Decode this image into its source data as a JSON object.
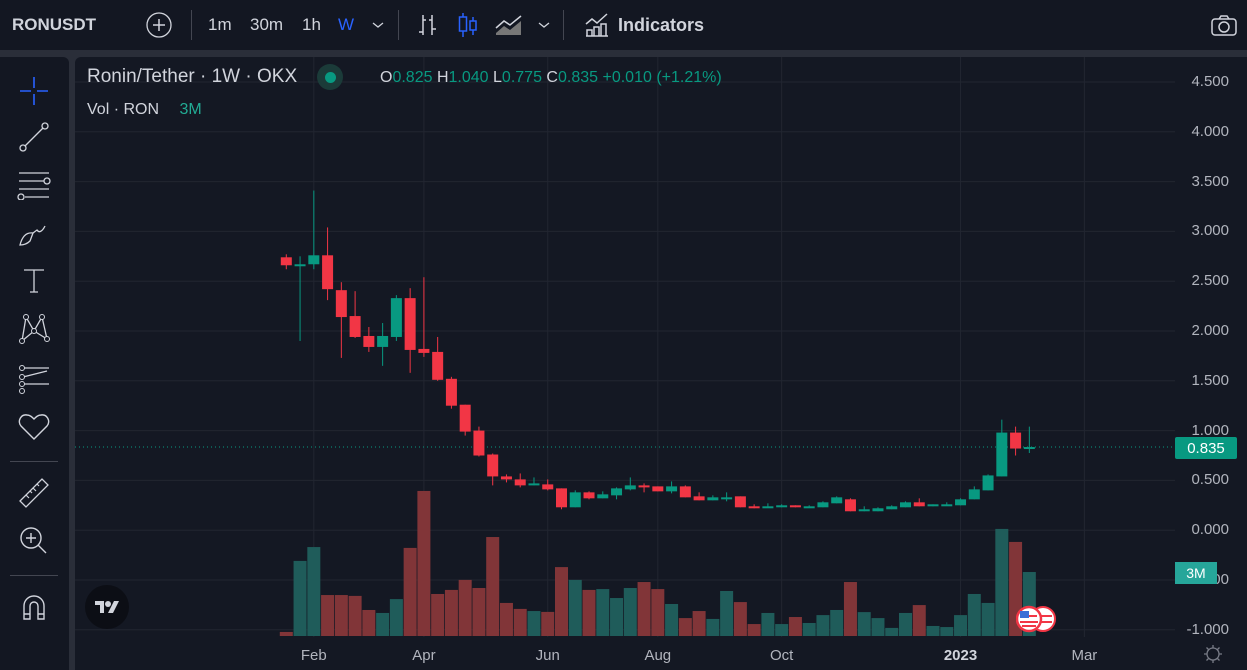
{
  "topbar": {
    "symbol": "RONUSDT",
    "intervals": [
      "1m",
      "30m",
      "1h",
      "W"
    ],
    "active_interval": "W",
    "indicators_label": "Indicators",
    "icons": [
      "add-symbol-icon",
      "bar-chart-icon",
      "candlestick-icon",
      "area-chart-icon",
      "chevron-down-icon",
      "indicators-icon",
      "camera-icon"
    ]
  },
  "left_toolbar": {
    "tools": [
      "crosshair-icon",
      "trend-line-icon",
      "fib-retracement-icon",
      "brush-icon",
      "text-icon",
      "pattern-icon",
      "forecast-icon",
      "heart-icon",
      "ruler-icon",
      "zoom-in-icon",
      "magnet-icon"
    ]
  },
  "legend": {
    "title": "Ronin/Tether · 1W · OKX",
    "o_label": "O",
    "o": "0.825",
    "h_label": "H",
    "h": "1.040",
    "l_label": "L",
    "l": "0.775",
    "c_label": "C",
    "c": "0.835",
    "change": "+0.010 (+1.21%)",
    "volume_label": "Vol · RON",
    "volume_value": "3M"
  },
  "colors": {
    "up": "#089981",
    "down": "#f23645",
    "accent": "#2962ff",
    "volume_up": "#1f5c5a",
    "volume_down": "#813538"
  },
  "price_axis": {
    "ticks": [
      "4.500",
      "4.000",
      "3.500",
      "3.000",
      "2.500",
      "2.000",
      "1.500",
      "1.000",
      "0.500",
      "0.000",
      "-0.500",
      "-1.000"
    ],
    "last_price": "0.835",
    "volume_badge": "3M"
  },
  "time_axis": {
    "labels": [
      "Feb",
      "Apr",
      "Jun",
      "Aug",
      "Oct",
      "2023",
      "Mar"
    ]
  },
  "chart_data": {
    "type": "candlestick",
    "ohlc": [
      [
        2.74,
        2.77,
        2.62,
        2.66
      ],
      [
        2.66,
        2.75,
        1.9,
        2.67
      ],
      [
        2.67,
        3.41,
        2.62,
        2.76
      ],
      [
        2.76,
        3.04,
        2.31,
        2.42
      ],
      [
        2.41,
        2.49,
        1.73,
        2.14
      ],
      [
        2.15,
        2.4,
        1.93,
        1.94
      ],
      [
        1.95,
        2.04,
        1.79,
        1.84
      ],
      [
        1.84,
        2.08,
        1.65,
        1.95
      ],
      [
        1.94,
        2.36,
        1.9,
        2.33
      ],
      [
        2.33,
        2.43,
        1.58,
        1.81
      ],
      [
        1.82,
        2.54,
        1.74,
        1.78
      ],
      [
        1.79,
        1.94,
        1.5,
        1.51
      ],
      [
        1.52,
        1.54,
        1.22,
        1.25
      ],
      [
        1.26,
        1.26,
        0.95,
        0.99
      ],
      [
        1.0,
        1.04,
        0.74,
        0.75
      ],
      [
        0.76,
        0.77,
        0.45,
        0.54
      ],
      [
        0.54,
        0.56,
        0.48,
        0.51
      ],
      [
        0.51,
        0.57,
        0.43,
        0.45
      ],
      [
        0.45,
        0.53,
        0.45,
        0.47
      ],
      [
        0.46,
        0.51,
        0.4,
        0.41
      ],
      [
        0.42,
        0.42,
        0.21,
        0.23
      ],
      [
        0.23,
        0.4,
        0.23,
        0.38
      ],
      [
        0.38,
        0.39,
        0.31,
        0.32
      ],
      [
        0.32,
        0.39,
        0.32,
        0.36
      ],
      [
        0.35,
        0.43,
        0.31,
        0.42
      ],
      [
        0.41,
        0.53,
        0.4,
        0.45
      ],
      [
        0.45,
        0.47,
        0.38,
        0.43
      ],
      [
        0.44,
        0.44,
        0.39,
        0.39
      ],
      [
        0.39,
        0.49,
        0.37,
        0.44
      ],
      [
        0.44,
        0.45,
        0.33,
        0.33
      ],
      [
        0.34,
        0.38,
        0.3,
        0.3
      ],
      [
        0.3,
        0.35,
        0.3,
        0.33
      ],
      [
        0.33,
        0.38,
        0.29,
        0.33
      ],
      [
        0.34,
        0.34,
        0.23,
        0.23
      ],
      [
        0.24,
        0.26,
        0.22,
        0.23
      ],
      [
        0.23,
        0.27,
        0.23,
        0.24
      ],
      [
        0.23,
        0.26,
        0.23,
        0.25
      ],
      [
        0.25,
        0.25,
        0.23,
        0.23
      ],
      [
        0.23,
        0.25,
        0.23,
        0.24
      ],
      [
        0.23,
        0.29,
        0.23,
        0.28
      ],
      [
        0.27,
        0.34,
        0.27,
        0.33
      ],
      [
        0.31,
        0.32,
        0.19,
        0.19
      ],
      [
        0.19,
        0.24,
        0.19,
        0.21
      ],
      [
        0.19,
        0.23,
        0.19,
        0.22
      ],
      [
        0.21,
        0.25,
        0.21,
        0.24
      ],
      [
        0.23,
        0.29,
        0.23,
        0.28
      ],
      [
        0.28,
        0.32,
        0.24,
        0.24
      ],
      [
        0.24,
        0.26,
        0.24,
        0.26
      ],
      [
        0.25,
        0.28,
        0.25,
        0.26
      ],
      [
        0.25,
        0.32,
        0.25,
        0.31
      ],
      [
        0.31,
        0.44,
        0.31,
        0.41
      ],
      [
        0.4,
        0.56,
        0.4,
        0.55
      ],
      [
        0.54,
        1.11,
        0.54,
        0.98
      ],
      [
        0.98,
        1.04,
        0.75,
        0.82
      ],
      [
        0.825,
        1.04,
        0.775,
        0.835
      ]
    ],
    "volume_millions": [
      0.19,
      3.52,
      4.17,
      1.92,
      1.92,
      1.88,
      1.22,
      1.08,
      1.73,
      4.13,
      6.8,
      1.97,
      2.16,
      2.63,
      2.25,
      4.64,
      1.55,
      1.27,
      1.17,
      1.13,
      3.23,
      2.63,
      2.16,
      2.2,
      1.78,
      2.25,
      2.53,
      2.2,
      1.5,
      0.84,
      1.17,
      0.8,
      2.11,
      1.59,
      0.56,
      1.08,
      0.56,
      0.89,
      0.61,
      0.98,
      1.22,
      2.53,
      1.12,
      0.84,
      0.38,
      1.08,
      1.45,
      0.47,
      0.42,
      0.98,
      1.97,
      1.55,
      5.02,
      4.41,
      3.0
    ],
    "ylim": [
      -1.0,
      4.5
    ],
    "grid": true
  }
}
